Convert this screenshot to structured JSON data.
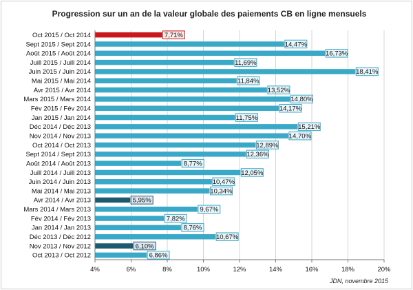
{
  "chart_data": {
    "type": "bar",
    "orientation": "horizontal",
    "title": "Progression sur un an de la valeur globale des paiements CB en ligne mensuels",
    "source": "JDN, novembre 2015",
    "categories": [
      "Oct 2015 / Oct 2014",
      "Sept 2015 / Sept 2014",
      "Août 2015 / Août 2014",
      "Juill 2015 / Juill 2014",
      "Juin 2015 / Juin 2014",
      "Mai 2015 / Mai 2014",
      "Avr 2015 / Avr 2014",
      "Mars 2015 / Mars 2014",
      "Fév 2015 / Fév 2014",
      "Jan 2015 / Jan 2014",
      "Déc 2014 / Déc 2013",
      "Nov 2014 / Nov 2013",
      "Oct 2014 / Oct 2013",
      "Sept 2014 / Sept 2013",
      "Août 2014 / Août 2013",
      "Juill 2014 / Juill 2013",
      "Juin 2014 / Juin 2013",
      "Mai 2014 / Mai 2013",
      "Avr 2014 / Avr 2013",
      "Mars 2014 / Mars 2013",
      "Fév 2014 / Fév 2013",
      "Jan 2014 / Jan 2013",
      "Déc 2013 / Déc 2012",
      "Nov 2013 / Nov 2012",
      "Oct 2013 / Oct 2012"
    ],
    "values": [
      7.71,
      14.47,
      16.73,
      11.69,
      18.41,
      11.84,
      13.52,
      14.8,
      14.17,
      11.75,
      15.21,
      14.7,
      12.89,
      12.36,
      8.77,
      12.05,
      10.47,
      10.34,
      5.95,
      9.67,
      7.82,
      8.76,
      10.67,
      6.1,
      6.86
    ],
    "data_labels": [
      "7,71%",
      "14,47%",
      "16,73%",
      "11,69%",
      "18,41%",
      "11,84%",
      "13,52%",
      "14,80%",
      "14,17%",
      "11,75%",
      "15,21%",
      "14,70%",
      "12,89%",
      "12,36%",
      "8,77%",
      "12,05%",
      "10,47%",
      "10,34%",
      "5,95%",
      "9,67%",
      "7,82%",
      "8,76%",
      "10,67%",
      "6,10%",
      "6,86%"
    ],
    "bar_styles": [
      "highlight",
      "normal",
      "normal",
      "normal",
      "normal",
      "normal",
      "normal",
      "normal",
      "normal",
      "normal",
      "normal",
      "normal",
      "normal",
      "normal",
      "normal",
      "normal",
      "normal",
      "normal",
      "low",
      "normal",
      "normal",
      "normal",
      "normal",
      "low",
      "normal"
    ],
    "xlim": [
      4,
      20
    ],
    "xticks": [
      "4%",
      "6%",
      "8%",
      "10%",
      "12%",
      "14%",
      "16%",
      "18%",
      "20%"
    ],
    "xtick_values": [
      4,
      6,
      8,
      10,
      12,
      14,
      16,
      18,
      20
    ],
    "xlabel": "",
    "ylabel": "",
    "grid": true,
    "legend": "none",
    "colors": {
      "normal": "#3aa9c8",
      "highlight": "#c9171b",
      "low": "#1d5a6e",
      "label_fill_normal": "#e8f5fa",
      "label_border_normal": "#3aa9c8",
      "label_fill_highlight": "#fde8e8",
      "label_border_highlight": "#c9171b",
      "label_fill_low": "#dde7f0",
      "label_border_low": "#1d5a6e",
      "grid": "#d4d4d4",
      "axis": "#777777"
    }
  }
}
